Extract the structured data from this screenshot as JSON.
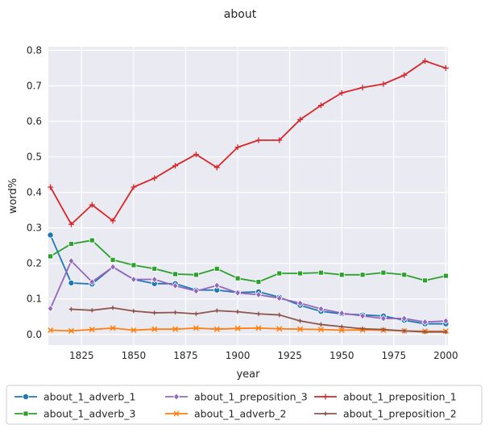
{
  "chart_data": {
    "type": "line",
    "title": "about",
    "xlabel": "year",
    "ylabel": "word%",
    "xlim": [
      1809,
      2001
    ],
    "ylim": [
      -0.03,
      0.81
    ],
    "xticks": [
      1825,
      1850,
      1875,
      1900,
      1925,
      1950,
      1975,
      2000
    ],
    "yticks": [
      0.0,
      0.1,
      0.2,
      0.3,
      0.4,
      0.5,
      0.6,
      0.7,
      0.8
    ],
    "grid": true,
    "legend_position": "bottom",
    "series": [
      {
        "name": "about_1_adverb_1",
        "color": "#1f77b4",
        "marker": "circle",
        "x": [
          1810,
          1820,
          1830,
          1840,
          1850,
          1860,
          1870,
          1880,
          1890,
          1900,
          1910,
          1920,
          1930,
          1940,
          1950,
          1960,
          1970,
          1980,
          1990,
          2000
        ],
        "y": [
          0.28,
          0.145,
          0.142,
          0.19,
          0.155,
          0.143,
          0.143,
          0.125,
          0.125,
          0.118,
          0.12,
          0.105,
          0.082,
          0.065,
          0.058,
          0.055,
          0.052,
          0.04,
          0.03,
          0.03
        ]
      },
      {
        "name": "about_1_adverb_2",
        "color": "#ff7f0e",
        "marker": "x",
        "x": [
          1810,
          1820,
          1830,
          1840,
          1850,
          1860,
          1870,
          1880,
          1890,
          1900,
          1910,
          1920,
          1930,
          1940,
          1950,
          1960,
          1970,
          1980,
          1990,
          2000
        ],
        "y": [
          0.012,
          0.01,
          0.014,
          0.018,
          0.012,
          0.015,
          0.015,
          0.018,
          0.015,
          0.017,
          0.018,
          0.016,
          0.015,
          0.014,
          0.012,
          0.013,
          0.012,
          0.01,
          0.009,
          0.009
        ]
      },
      {
        "name": "about_1_adverb_3",
        "color": "#2ca02c",
        "marker": "square",
        "x": [
          1810,
          1820,
          1830,
          1840,
          1850,
          1860,
          1870,
          1880,
          1890,
          1900,
          1910,
          1920,
          1930,
          1940,
          1950,
          1960,
          1970,
          1980,
          1990,
          2000
        ],
        "y": [
          0.22,
          0.255,
          0.265,
          0.21,
          0.195,
          0.185,
          0.17,
          0.168,
          0.185,
          0.158,
          0.148,
          0.172,
          0.172,
          0.174,
          0.168,
          0.168,
          0.174,
          0.168,
          0.152,
          0.165
        ]
      },
      {
        "name": "about_1_preposition_1",
        "color": "#d62728",
        "marker": "plus",
        "x": [
          1810,
          1820,
          1830,
          1840,
          1850,
          1860,
          1870,
          1880,
          1890,
          1900,
          1910,
          1920,
          1930,
          1940,
          1950,
          1960,
          1970,
          1980,
          1990,
          2000
        ],
        "y": [
          0.415,
          0.31,
          0.365,
          0.32,
          0.415,
          0.44,
          0.475,
          0.507,
          0.47,
          0.527,
          0.547,
          0.547,
          0.605,
          0.645,
          0.68,
          0.695,
          0.705,
          0.73,
          0.77,
          0.75
        ]
      },
      {
        "name": "about_1_preposition_3",
        "color": "#9467bd",
        "marker": "diamond",
        "x": [
          1810,
          1820,
          1830,
          1840,
          1850,
          1860,
          1870,
          1880,
          1890,
          1900,
          1910,
          1920,
          1930,
          1940,
          1950,
          1960,
          1970,
          1980,
          1990,
          2000
        ],
        "y": [
          0.073,
          0.207,
          0.148,
          0.19,
          0.155,
          0.155,
          0.137,
          0.122,
          0.138,
          0.117,
          0.112,
          0.102,
          0.088,
          0.072,
          0.06,
          0.052,
          0.045,
          0.045,
          0.035,
          0.038
        ]
      },
      {
        "name": "about_1_preposition_2",
        "color": "#8c564b",
        "marker": "star",
        "x": [
          1820,
          1830,
          1840,
          1850,
          1860,
          1870,
          1880,
          1890,
          1900,
          1910,
          1920,
          1930,
          1940,
          1950,
          1960,
          1970,
          1980,
          1990,
          2000
        ],
        "y": [
          0.071,
          0.068,
          0.075,
          0.066,
          0.061,
          0.062,
          0.058,
          0.067,
          0.064,
          0.058,
          0.055,
          0.038,
          0.028,
          0.022,
          0.016,
          0.014,
          0.01,
          0.007,
          0.007
        ]
      }
    ],
    "legend_order": [
      0,
      2,
      4,
      1,
      3,
      5
    ]
  }
}
